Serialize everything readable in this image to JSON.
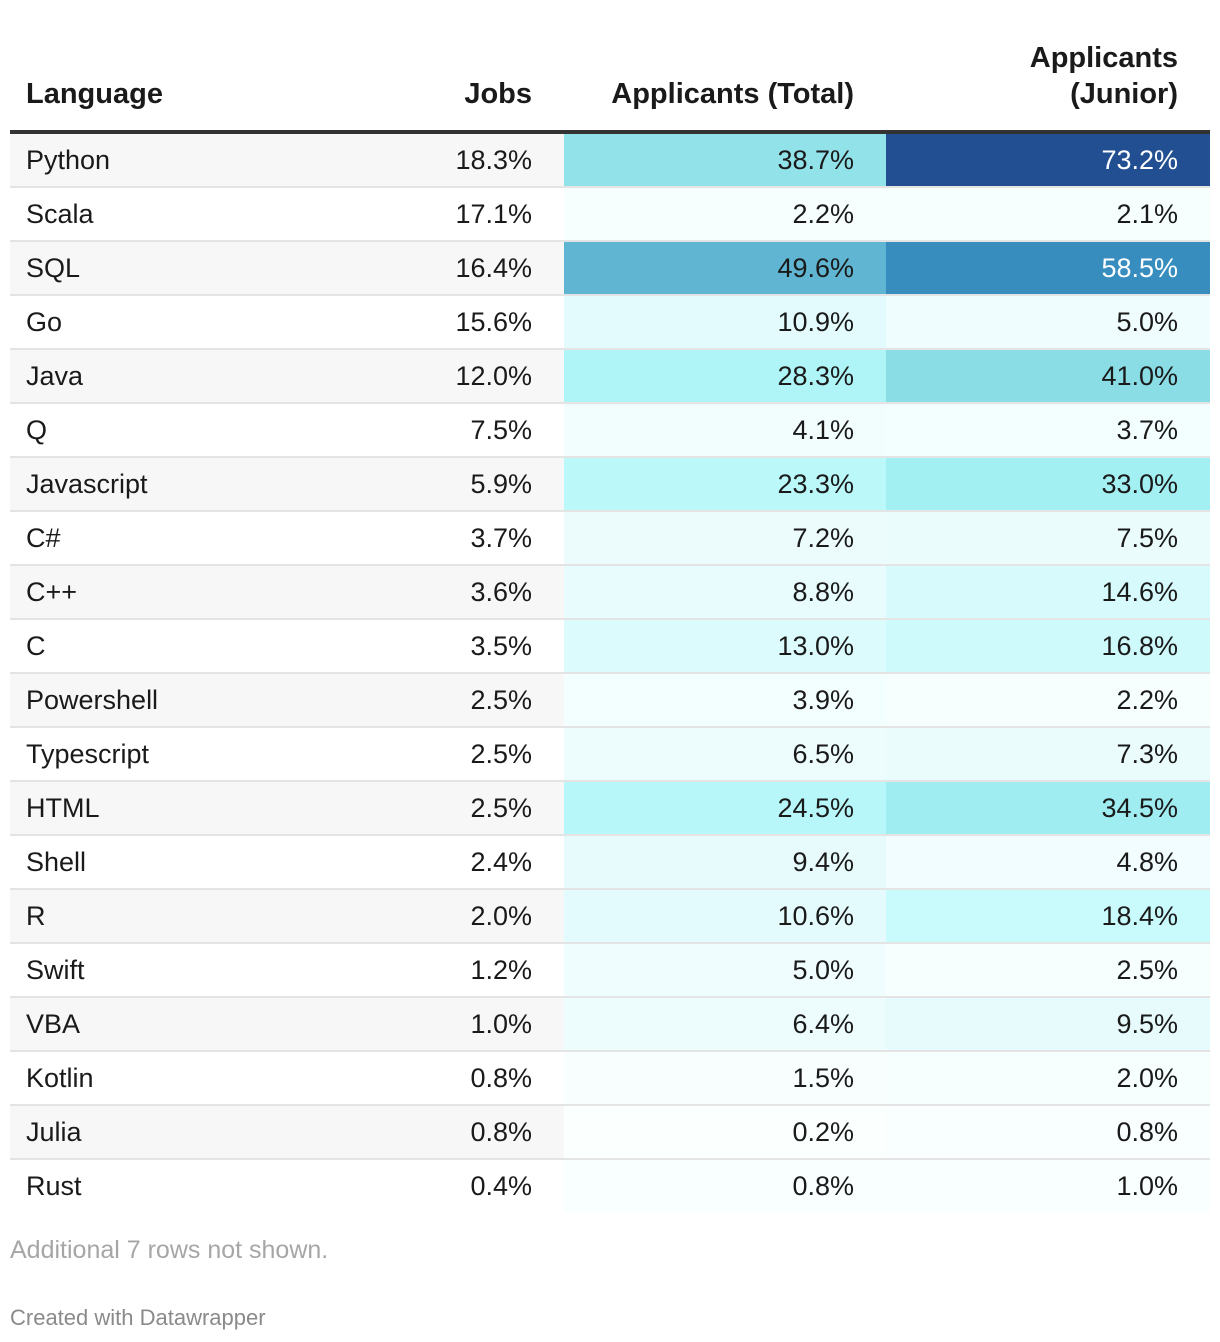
{
  "chart_data": {
    "type": "table",
    "columns": [
      "Language",
      "Jobs",
      "Applicants (Total)",
      "Applicants (Junior)"
    ],
    "heatmap_columns": [
      "Applicants (Total)",
      "Applicants (Junior)"
    ],
    "rows": [
      {
        "language": "Python",
        "jobs": "18.3%",
        "total": 38.7,
        "junior": 73.2
      },
      {
        "language": "Scala",
        "jobs": "17.1%",
        "total": 2.2,
        "junior": 2.1
      },
      {
        "language": "SQL",
        "jobs": "16.4%",
        "total": 49.6,
        "junior": 58.5
      },
      {
        "language": "Go",
        "jobs": "15.6%",
        "total": 10.9,
        "junior": 5.0
      },
      {
        "language": "Java",
        "jobs": "12.0%",
        "total": 28.3,
        "junior": 41.0
      },
      {
        "language": "Q",
        "jobs": "7.5%",
        "total": 4.1,
        "junior": 3.7
      },
      {
        "language": "Javascript",
        "jobs": "5.9%",
        "total": 23.3,
        "junior": 33.0
      },
      {
        "language": "C#",
        "jobs": "3.7%",
        "total": 7.2,
        "junior": 7.5
      },
      {
        "language": "C++",
        "jobs": "3.6%",
        "total": 8.8,
        "junior": 14.6
      },
      {
        "language": "C",
        "jobs": "3.5%",
        "total": 13.0,
        "junior": 16.8
      },
      {
        "language": "Powershell",
        "jobs": "2.5%",
        "total": 3.9,
        "junior": 2.2
      },
      {
        "language": "Typescript",
        "jobs": "2.5%",
        "total": 6.5,
        "junior": 7.3
      },
      {
        "language": "HTML",
        "jobs": "2.5%",
        "total": 24.5,
        "junior": 34.5
      },
      {
        "language": "Shell",
        "jobs": "2.4%",
        "total": 9.4,
        "junior": 4.8
      },
      {
        "language": "R",
        "jobs": "2.0%",
        "total": 10.6,
        "junior": 18.4
      },
      {
        "language": "Swift",
        "jobs": "1.2%",
        "total": 5.0,
        "junior": 2.5
      },
      {
        "language": "VBA",
        "jobs": "1.0%",
        "total": 6.4,
        "junior": 9.5
      },
      {
        "language": "Kotlin",
        "jobs": "0.8%",
        "total": 1.5,
        "junior": 2.0
      },
      {
        "language": "Julia",
        "jobs": "0.8%",
        "total": 0.2,
        "junior": 0.8
      },
      {
        "language": "Rust",
        "jobs": "0.4%",
        "total": 0.8,
        "junior": 1.0
      }
    ],
    "color_scale": {
      "domain": [
        0,
        75
      ],
      "stops": [
        "#fbfffe",
        "#e4fbfd",
        "#bff9fb",
        "#a6f2f5",
        "#84d8e2",
        "#4ba2c8",
        "#1f74b2",
        "#23478b"
      ]
    }
  },
  "header": {
    "language": "Language",
    "jobs": "Jobs",
    "total": "Applicants (Total)",
    "junior_line1": "Applicants",
    "junior_line2": "(Junior)"
  },
  "notes": "Additional 7 rows not shown.",
  "credit": "Created with Datawrapper"
}
